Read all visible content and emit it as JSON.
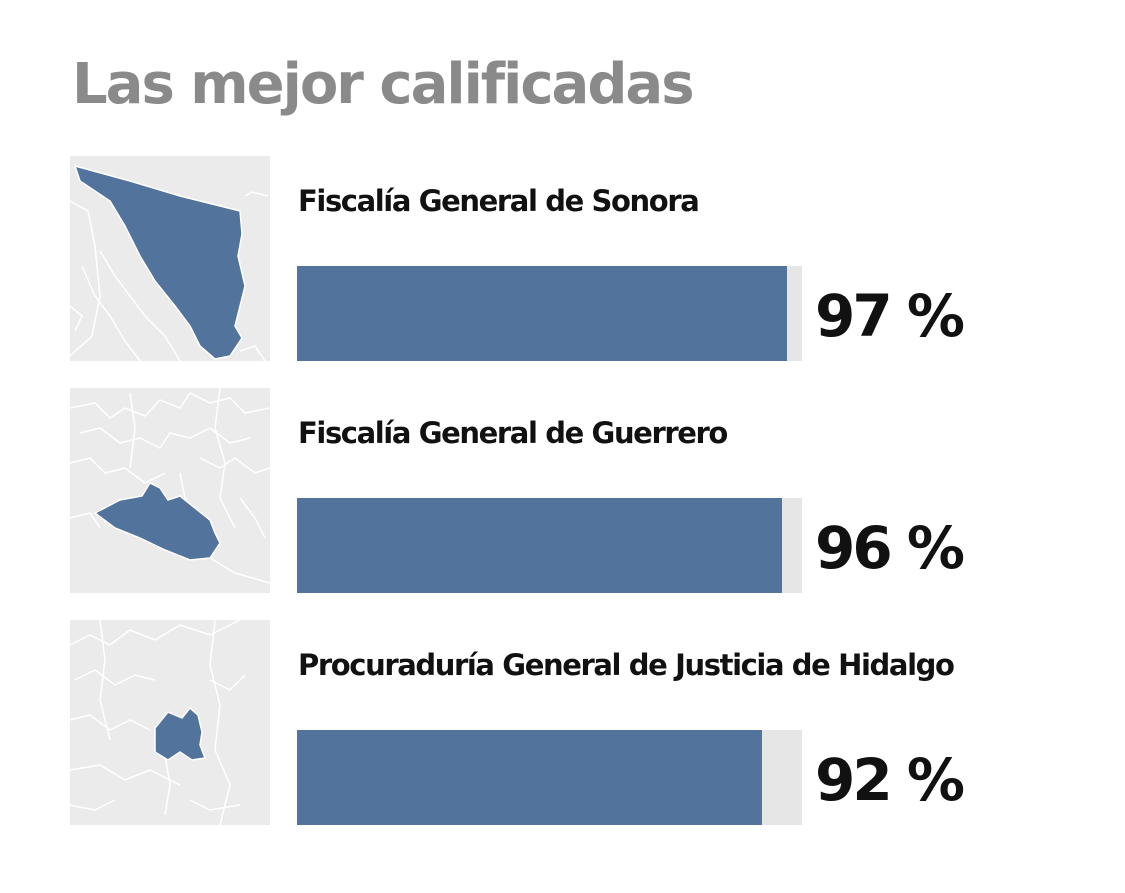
{
  "chart_data": {
    "type": "bar",
    "orientation": "horizontal",
    "title": "Las mejor calificadas",
    "xlim": [
      0,
      100
    ],
    "unit": "%",
    "grid": false,
    "colors": {
      "bar": "#52739c",
      "track": "#e6e6e6",
      "map_fill": "#52739c",
      "map_background": "#ebebeb"
    },
    "categories": [
      "Fiscalía General de Sonora",
      "Fiscalía General de Guerrero",
      "Procuraduría General de Justicia de Hidalgo"
    ],
    "values": [
      97,
      96,
      92
    ],
    "value_labels": [
      "97 %",
      "96 %",
      "92 %"
    ],
    "icons": [
      "sonora-map-icon",
      "guerrero-map-icon",
      "hidalgo-map-icon"
    ]
  }
}
